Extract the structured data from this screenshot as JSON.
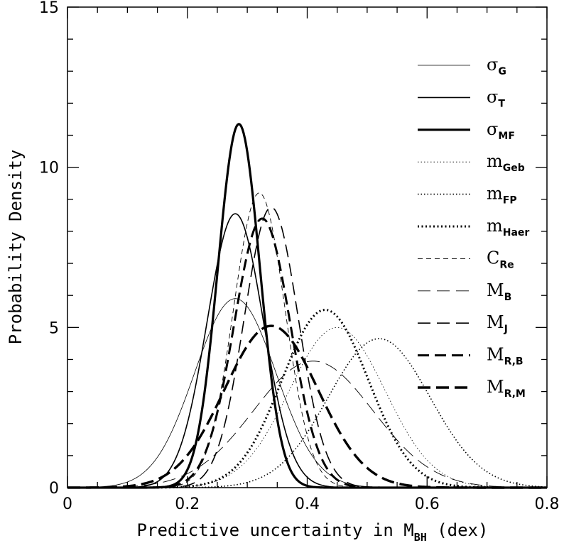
{
  "chart_data": {
    "type": "line",
    "title": "",
    "xlabel": {
      "main": "Predictive uncertainty in M",
      "sub": "BH",
      "suffix": " (dex)"
    },
    "ylabel": "Probability Density",
    "xlim": [
      0,
      0.8
    ],
    "ylim": [
      0,
      15
    ],
    "x_ticks": [
      0,
      0.2,
      0.4,
      0.6,
      0.8
    ],
    "x_tick_labels": [
      "0",
      "0.2",
      "0.4",
      "0.6",
      "0.8"
    ],
    "y_ticks": [
      0,
      5,
      10,
      15
    ],
    "y_tick_labels": [
      "0",
      "5",
      "10",
      "15"
    ],
    "grid": false,
    "legend_position": "top-right",
    "series": [
      {
        "name": "σ",
        "sub": "G",
        "family": "gauss",
        "mu": 0.28,
        "sigma": 0.068,
        "peak": 5.9,
        "style": {
          "width": 0.8,
          "dash": ""
        }
      },
      {
        "name": "σ",
        "sub": "T",
        "family": "gauss",
        "mu": 0.28,
        "sigma": 0.047,
        "peak": 8.55,
        "style": {
          "width": 1.6,
          "dash": ""
        }
      },
      {
        "name": "σ",
        "sub": "MF",
        "family": "gauss",
        "mu": 0.286,
        "sigma": 0.035,
        "peak": 11.35,
        "style": {
          "width": 3.2,
          "dash": ""
        }
      },
      {
        "name": "m",
        "sub": "Geb",
        "family": "gauss",
        "mu": 0.45,
        "sigma": 0.08,
        "peak": 5.0,
        "style": {
          "width": 0.8,
          "dash": "1.5,3"
        }
      },
      {
        "name": "m",
        "sub": "FP",
        "family": "gauss",
        "mu": 0.52,
        "sigma": 0.085,
        "peak": 4.65,
        "style": {
          "width": 1.6,
          "dash": "1.5,3"
        }
      },
      {
        "name": "m",
        "sub": "Haer",
        "family": "gauss",
        "mu": 0.43,
        "sigma": 0.072,
        "peak": 5.55,
        "style": {
          "width": 3.0,
          "dash": "2,3.5"
        }
      },
      {
        "name": "C",
        "sub": "Re",
        "family": "gauss",
        "mu": 0.32,
        "sigma": 0.043,
        "peak": 9.2,
        "style": {
          "width": 0.9,
          "dash": "7,5"
        }
      },
      {
        "name": "M",
        "sub": "B",
        "family": "gauss",
        "mu": 0.41,
        "sigma": 0.1,
        "peak": 3.95,
        "style": {
          "width": 0.9,
          "dash": "18,9"
        }
      },
      {
        "name": "M",
        "sub": "J",
        "family": "gauss",
        "mu": 0.34,
        "sigma": 0.045,
        "peak": 8.75,
        "style": {
          "width": 1.6,
          "dash": "18,9"
        }
      },
      {
        "name": "M",
        "sub": "R,B",
        "family": "gauss",
        "mu": 0.325,
        "sigma": 0.047,
        "peak": 8.4,
        "style": {
          "width": 3.0,
          "dash": "16,8"
        }
      },
      {
        "name": "M",
        "sub": "R,M",
        "family": "gauss",
        "mu": 0.34,
        "sigma": 0.078,
        "peak": 5.05,
        "style": {
          "width": 3.4,
          "dash": "18,8"
        }
      }
    ]
  }
}
